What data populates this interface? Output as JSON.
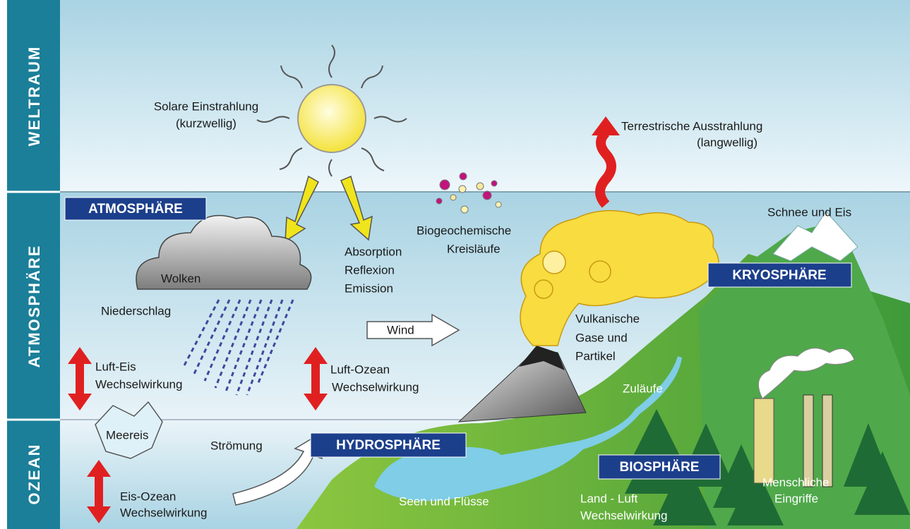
{
  "zones": {
    "space": "WELTRAUM",
    "atmosphere": "ATMOSPHÄRE",
    "ocean": "OZEAN"
  },
  "spheres": {
    "atmosphere": "ATMOSPHÄRE",
    "cryosphere": "KRYOSPHÄRE",
    "hydrosphere": "HYDROSPHÄRE",
    "biosphere": "BIOSPHÄRE"
  },
  "labels": {
    "solar": [
      "Solare Einstrahlung",
      "(kurzwellig)"
    ],
    "terrestrial": [
      "Terrestrische Ausstrahlung",
      "(langwellig)"
    ],
    "snow": [
      "Schnee und Eis"
    ],
    "biogeo": [
      "Biogeochemische",
      "Kreisläufe"
    ],
    "absorption": [
      "Absorption",
      "Reflexion",
      "Emission"
    ],
    "clouds": [
      "Wolken"
    ],
    "precipitation": [
      "Niederschlag"
    ],
    "wind": [
      "Wind"
    ],
    "volcanic": [
      "Vulkanische",
      "Gase und",
      "Partikel"
    ],
    "air_ice": [
      "Luft-Eis",
      "Wechselwirkung"
    ],
    "air_ocean": [
      "Luft-Ozean",
      "Wechselwirkung"
    ],
    "inflows": [
      "Zuläufe"
    ],
    "sea_ice": [
      "Meereis"
    ],
    "current": [
      "Strömung"
    ],
    "ice_ocean": [
      "Eis-Ozean",
      "Wechselwirkung"
    ],
    "lakes": [
      "Seen und Flüsse"
    ],
    "land_air": [
      "Land - Luft",
      "Wechselwirkung"
    ],
    "human": [
      "Menschliche",
      "Eingriffe"
    ]
  }
}
